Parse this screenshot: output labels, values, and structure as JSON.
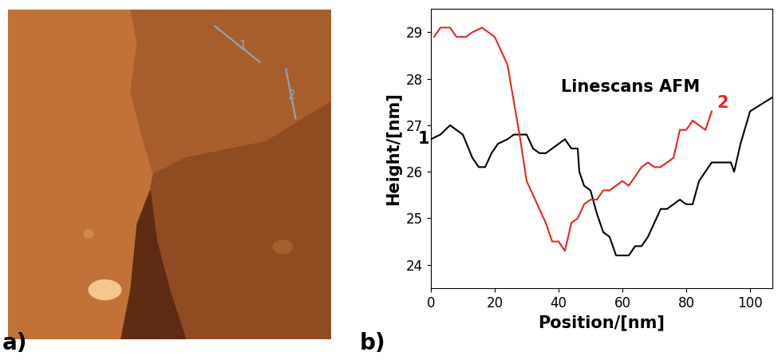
{
  "panel_labels": [
    "a)",
    "b)"
  ],
  "image_annotations": [
    "1",
    "2"
  ],
  "chart_data": {
    "type": "line",
    "annotation": "Linescans AFM",
    "x_label": "Position/[nm]",
    "y_label": "Height/[nm]",
    "xlim": [
      0,
      107
    ],
    "ylim": [
      23.5,
      29.5
    ],
    "xticks": [
      0,
      20,
      40,
      60,
      80,
      100
    ],
    "yticks": [
      24,
      25,
      26,
      27,
      28,
      29
    ],
    "grid": false,
    "series": [
      {
        "name": "1",
        "color": "#000000",
        "x": [
          0,
          3,
          6,
          10,
          13,
          15,
          17,
          19,
          21,
          24,
          26,
          30,
          32,
          34,
          36,
          38,
          40,
          42,
          44,
          46,
          46.5,
          48,
          50,
          52,
          54,
          56,
          58,
          60,
          62,
          64,
          66,
          68,
          70,
          72,
          74,
          76,
          78,
          80,
          82,
          84,
          86,
          88,
          90,
          92,
          94,
          95,
          97,
          100,
          107
        ],
        "values": [
          26.7,
          26.8,
          27.0,
          26.8,
          26.3,
          26.1,
          26.1,
          26.4,
          26.6,
          26.7,
          26.8,
          26.8,
          26.5,
          26.4,
          26.4,
          26.5,
          26.6,
          26.7,
          26.5,
          26.5,
          26.0,
          25.7,
          25.6,
          25.1,
          24.7,
          24.6,
          24.2,
          24.2,
          24.2,
          24.4,
          24.4,
          24.6,
          24.9,
          25.2,
          25.2,
          25.3,
          25.4,
          25.3,
          25.3,
          25.8,
          26.0,
          26.2,
          26.2,
          26.2,
          26.2,
          26.0,
          26.6,
          27.3,
          27.6
        ]
      },
      {
        "name": "2",
        "color": "#e8251f",
        "x": [
          1,
          3,
          6,
          8,
          11,
          13,
          16,
          18,
          20,
          22,
          24,
          26,
          28,
          30,
          32,
          34,
          36,
          38,
          40,
          42,
          44,
          46,
          48,
          50,
          52,
          54,
          56,
          58,
          60,
          62,
          64,
          66,
          68,
          70,
          72,
          74,
          76,
          78,
          80,
          82,
          84,
          86,
          88
        ],
        "values": [
          28.9,
          29.1,
          29.1,
          28.9,
          28.9,
          29.0,
          29.1,
          29.0,
          28.9,
          28.6,
          28.3,
          27.5,
          26.7,
          25.8,
          25.5,
          25.2,
          24.9,
          24.5,
          24.5,
          24.3,
          24.9,
          25.0,
          25.3,
          25.4,
          25.4,
          25.6,
          25.6,
          25.7,
          25.8,
          25.7,
          25.9,
          26.1,
          26.2,
          26.1,
          26.1,
          26.2,
          26.3,
          26.9,
          26.9,
          27.1,
          27.0,
          26.9,
          27.3
        ]
      }
    ]
  }
}
